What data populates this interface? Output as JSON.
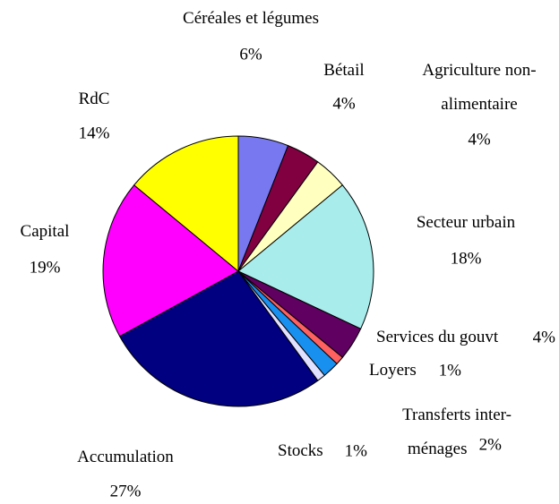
{
  "chart_data": {
    "type": "pie",
    "categories": [
      "Céréales et légumes",
      "Bétail",
      "Agriculture non-\nalimentaire",
      "Secteur urbain",
      "Services du gouvt",
      "Loyers",
      "Transferts inter-\nménages",
      "Stocks",
      "Accumulation",
      "Capital",
      "RdC"
    ],
    "values": [
      6,
      4,
      4,
      18,
      4,
      1,
      2,
      1,
      27,
      19,
      14
    ],
    "value_labels": [
      "6%",
      "4%",
      "4%",
      "18%",
      "4%",
      "1%",
      "2%",
      "1%",
      "27%",
      "19%",
      "14%"
    ],
    "colors": [
      "#7878f0",
      "#800040",
      "#ffffc0",
      "#a8ecec",
      "#600060",
      "#ff6060",
      "#1890f0",
      "#e0e0ff",
      "#000080",
      "#ff00ff",
      "#ffff00"
    ]
  }
}
